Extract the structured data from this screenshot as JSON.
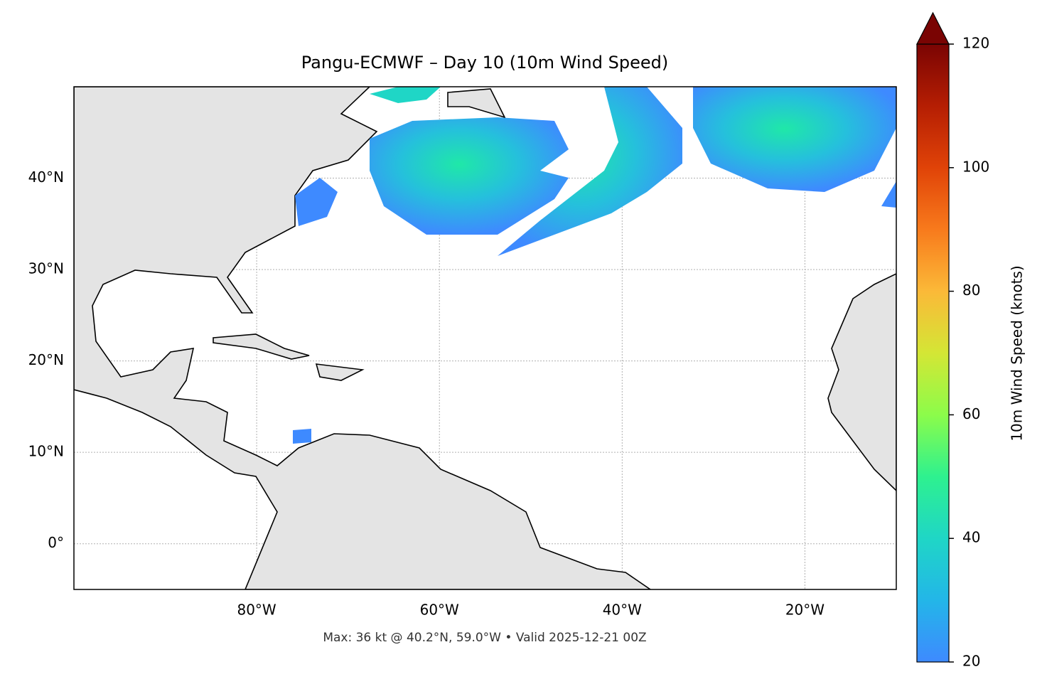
{
  "map": {
    "title": "Pangu-ECMWF – Day 10 (10m Wind Speed)",
    "annotation": "Max: 36 kt @ 40.2°N, 59.0°W • Valid 2025-12-21 00Z",
    "xlim": [
      -100,
      -10
    ],
    "ylim": [
      -5,
      50
    ],
    "xticks": [
      {
        "value": -80,
        "label": "80°W"
      },
      {
        "value": -60,
        "label": "60°W"
      },
      {
        "value": -40,
        "label": "40°W"
      },
      {
        "value": -20,
        "label": "20°W"
      }
    ],
    "yticks": [
      {
        "value": 0,
        "label": "0°"
      },
      {
        "value": 10,
        "label": "10°N"
      },
      {
        "value": 20,
        "label": "20°N"
      },
      {
        "value": 30,
        "label": "30°N"
      },
      {
        "value": 40,
        "label": "40°N"
      }
    ],
    "grid": true,
    "colorbar": {
      "label": "10m Wind Speed (knots)",
      "lim": [
        20,
        120
      ],
      "ticks": [
        20,
        40,
        60,
        80,
        100,
        120
      ],
      "extend": "max"
    }
  }
}
